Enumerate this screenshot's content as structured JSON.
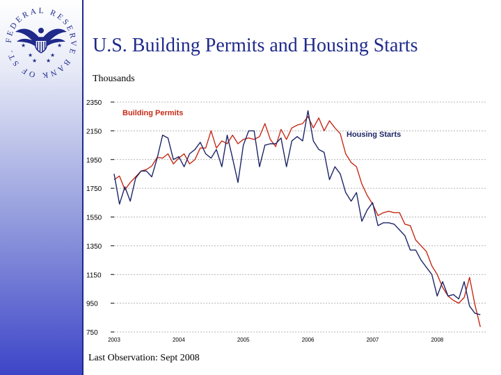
{
  "header": {
    "title": "U.S. Building Permits and Housing Starts",
    "units_label": "Thousands"
  },
  "logo": {
    "ring_text": "FEDERAL RESERVE BANK OF ST. LOUIS",
    "ring_color": "#1f2a8a"
  },
  "footer": {
    "last_observation": "Last Observation: Sept 2008"
  },
  "colors": {
    "permits": "#c62a17",
    "starts": "#1c2566",
    "title": "#1f2a8a"
  },
  "chart_data": {
    "type": "line",
    "title": "U.S. Building Permits and Housing Starts",
    "ylabel": "Thousands",
    "ylim": [
      750,
      2350
    ],
    "y_ticks": [
      {
        "value": 2350,
        "label": "2350"
      },
      {
        "value": 2150,
        "label": "2150"
      },
      {
        "value": 1950,
        "label": "1950"
      },
      {
        "value": 1750,
        "label": "1750"
      },
      {
        "value": 1550,
        "label": "1550"
      },
      {
        "value": 1350,
        "label": "1350"
      },
      {
        "value": 1150,
        "label": "1150"
      },
      {
        "value": 950,
        "label": "950"
      },
      {
        "value": 750,
        "label": "750"
      }
    ],
    "x_ticks": [
      {
        "value": 2003,
        "label": "2003"
      },
      {
        "value": 2004,
        "label": "2004"
      },
      {
        "value": 2005,
        "label": "2005"
      },
      {
        "value": 2006,
        "label": "2006"
      },
      {
        "value": 2007,
        "label": "2007"
      },
      {
        "value": 2008,
        "label": "2008"
      }
    ],
    "xlim": [
      2003,
      2008.75
    ],
    "grid": true,
    "series": [
      {
        "name": "Building Permits",
        "color": "#c62a17",
        "x": [
          2003.0,
          2003.083,
          2003.167,
          2003.25,
          2003.333,
          2003.417,
          2003.5,
          2003.583,
          2003.667,
          2003.75,
          2003.833,
          2003.917,
          2004.0,
          2004.083,
          2004.167,
          2004.25,
          2004.333,
          2004.417,
          2004.5,
          2004.583,
          2004.667,
          2004.75,
          2004.833,
          2004.917,
          2005.0,
          2005.083,
          2005.167,
          2005.25,
          2005.333,
          2005.417,
          2005.5,
          2005.583,
          2005.667,
          2005.75,
          2005.833,
          2005.917,
          2006.0,
          2006.083,
          2006.167,
          2006.25,
          2006.333,
          2006.417,
          2006.5,
          2006.583,
          2006.667,
          2006.75,
          2006.833,
          2006.917,
          2007.0,
          2007.083,
          2007.167,
          2007.25,
          2007.333,
          2007.417,
          2007.5,
          2007.583,
          2007.667,
          2007.75,
          2007.833,
          2007.917,
          2008.0,
          2008.083,
          2008.167,
          2008.25,
          2008.333,
          2008.417,
          2008.5,
          2008.583,
          2008.667
        ],
        "values": [
          1810,
          1835,
          1740,
          1790,
          1830,
          1870,
          1880,
          1905,
          1965,
          1960,
          1990,
          1920,
          1960,
          1990,
          1920,
          1950,
          2030,
          2030,
          2150,
          2030,
          2080,
          2060,
          2120,
          2060,
          2090,
          2100,
          2090,
          2110,
          2200,
          2090,
          2040,
          2160,
          2090,
          2170,
          2190,
          2200,
          2250,
          2170,
          2240,
          2150,
          2220,
          2170,
          2130,
          1990,
          1930,
          1900,
          1780,
          1700,
          1640,
          1560,
          1580,
          1590,
          1580,
          1580,
          1500,
          1490,
          1390,
          1350,
          1310,
          1210,
          1150,
          1060,
          1000,
          970,
          950,
          990,
          1130,
          940,
          785
        ]
      },
      {
        "name": "Housing Starts",
        "color": "#1c2566",
        "x": [
          2003.0,
          2003.083,
          2003.167,
          2003.25,
          2003.333,
          2003.417,
          2003.5,
          2003.583,
          2003.667,
          2003.75,
          2003.833,
          2003.917,
          2004.0,
          2004.083,
          2004.167,
          2004.25,
          2004.333,
          2004.417,
          2004.5,
          2004.583,
          2004.667,
          2004.75,
          2004.833,
          2004.917,
          2005.0,
          2005.083,
          2005.167,
          2005.25,
          2005.333,
          2005.417,
          2005.5,
          2005.583,
          2005.667,
          2005.75,
          2005.833,
          2005.917,
          2006.0,
          2006.083,
          2006.167,
          2006.25,
          2006.333,
          2006.417,
          2006.5,
          2006.583,
          2006.667,
          2006.75,
          2006.833,
          2006.917,
          2007.0,
          2007.083,
          2007.167,
          2007.25,
          2007.333,
          2007.417,
          2007.5,
          2007.583,
          2007.667,
          2007.75,
          2007.833,
          2007.917,
          2008.0,
          2008.083,
          2008.167,
          2008.25,
          2008.333,
          2008.417,
          2008.5,
          2008.583,
          2008.667
        ],
        "values": [
          1850,
          1640,
          1760,
          1660,
          1820,
          1870,
          1870,
          1830,
          1960,
          2120,
          2100,
          1950,
          1970,
          1900,
          1990,
          2020,
          2070,
          1990,
          1960,
          2020,
          1900,
          2120,
          1960,
          1790,
          2050,
          2150,
          2150,
          1900,
          2050,
          2060,
          2060,
          2100,
          1900,
          2080,
          2110,
          2080,
          2290,
          2080,
          2020,
          2000,
          1810,
          1900,
          1850,
          1720,
          1660,
          1720,
          1520,
          1600,
          1650,
          1490,
          1510,
          1510,
          1500,
          1460,
          1420,
          1320,
          1320,
          1250,
          1200,
          1150,
          1000,
          1100,
          1000,
          1010,
          980,
          1100,
          930,
          880,
          870
        ]
      }
    ],
    "legend": [
      {
        "label": "Building Permits",
        "placement": "top-left",
        "color": "#c62a17"
      },
      {
        "label": "Housing Starts",
        "placement": "top-right",
        "color": "#1c2566"
      }
    ]
  }
}
